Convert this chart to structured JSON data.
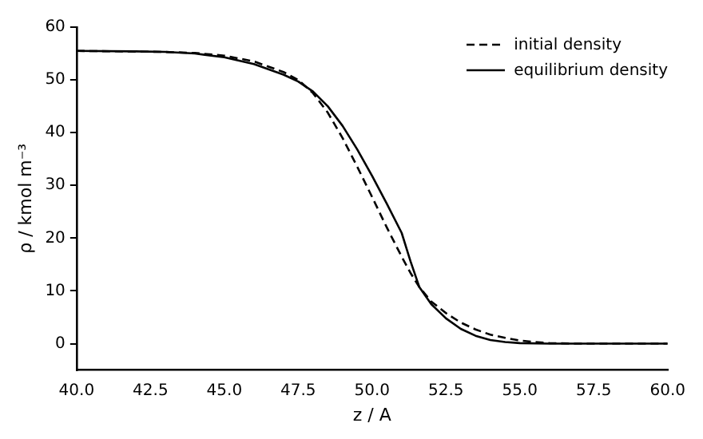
{
  "chart_data": {
    "type": "line",
    "xlabel": "z / A",
    "ylabel": "ρ / kmol m⁻³",
    "xlim": [
      40,
      60
    ],
    "xticks": [
      {
        "value": 40,
        "label": "40.0"
      },
      {
        "value": 42.5,
        "label": "42.5"
      },
      {
        "value": 45,
        "label": "45.0"
      },
      {
        "value": 47.5,
        "label": "47.5"
      },
      {
        "value": 50,
        "label": "50.0"
      },
      {
        "value": 52.5,
        "label": "52.5"
      },
      {
        "value": 55,
        "label": "55.0"
      },
      {
        "value": 57.5,
        "label": "57.5"
      },
      {
        "value": 60,
        "label": "60.0"
      }
    ],
    "ylim": [
      -5,
      60
    ],
    "yticks": [
      0,
      10,
      20,
      30,
      40,
      50,
      60
    ],
    "grid": false,
    "legend": "top right",
    "marker": "none",
    "series": [
      {
        "name": "initial density",
        "color": "#000000",
        "line_style": "dashed",
        "x": [
          40,
          43,
          44,
          45,
          46,
          47,
          47.5,
          48,
          48.5,
          49,
          49.5,
          50,
          50.5,
          51,
          51.3,
          51.6,
          52,
          52.5,
          53,
          53.5,
          54,
          54.5,
          55,
          55.5,
          56,
          57,
          60
        ],
        "values": [
          55.5,
          55.3,
          55.1,
          54.6,
          53.5,
          51.5,
          50,
          47.5,
          43.8,
          39,
          33.5,
          27.8,
          22,
          16.5,
          13.4,
          10.7,
          8,
          5.8,
          4,
          2.7,
          1.7,
          1.1,
          0.6,
          0.3,
          0.1,
          0,
          0
        ]
      },
      {
        "name": "equilibrium density",
        "color": "#000000",
        "line_style": "solid",
        "x": [
          40,
          42,
          43,
          44,
          45,
          46,
          47,
          47.5,
          48,
          48.5,
          49,
          49.5,
          50,
          50.5,
          51,
          51.3,
          51.6,
          52,
          52.5,
          53,
          53.5,
          54,
          54.5,
          55,
          56,
          60
        ],
        "values": [
          55.5,
          55.4,
          55.3,
          55,
          54.3,
          53,
          51,
          49.7,
          47.8,
          45,
          41.3,
          36.8,
          31.8,
          26.5,
          21,
          15.6,
          10.7,
          7.5,
          4.8,
          2.8,
          1.5,
          0.7,
          0.3,
          0.1,
          0,
          0
        ]
      }
    ]
  }
}
